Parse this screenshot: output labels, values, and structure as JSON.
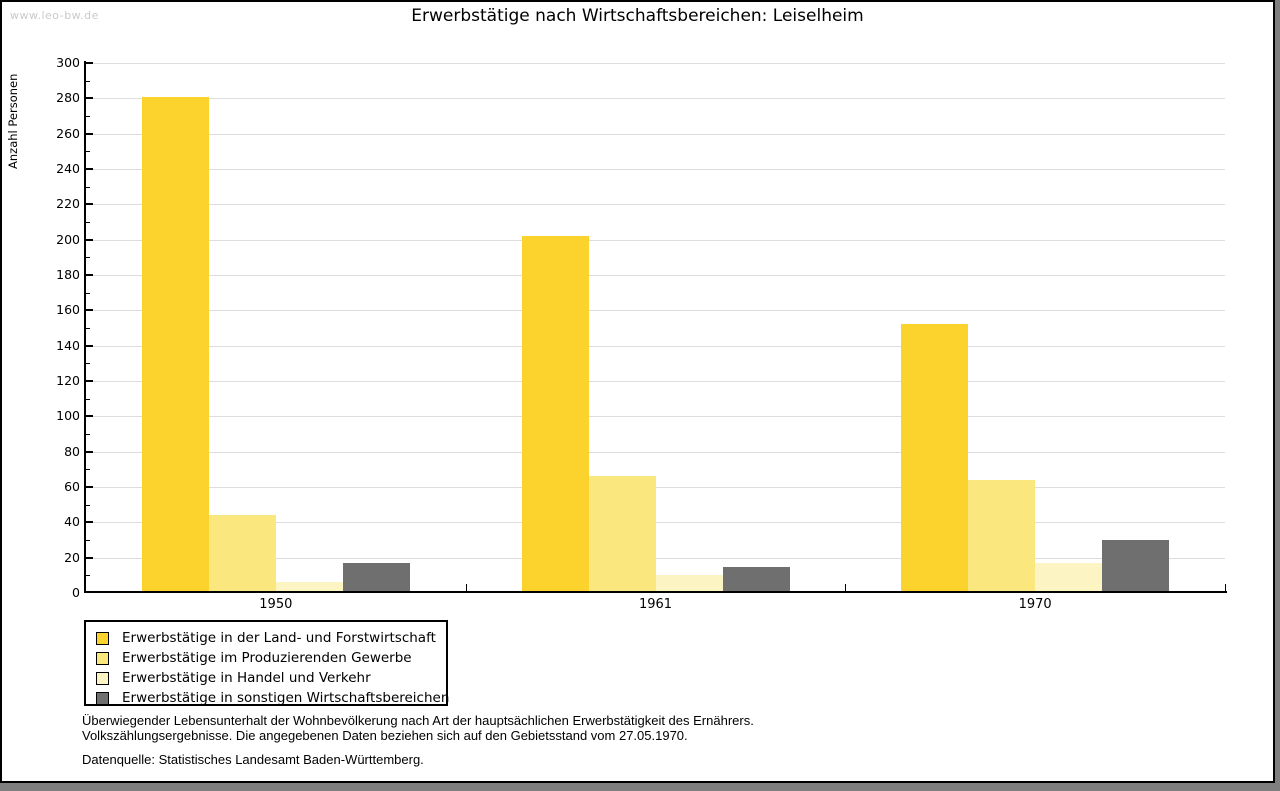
{
  "watermark": "www.leo-bw.de",
  "title": "Erwerbstätige nach Wirtschaftsbereichen: Leiselheim",
  "chart_data": {
    "type": "bar",
    "title": "Erwerbstätige nach Wirtschaftsbereichen: Leiselheim",
    "xlabel": "",
    "ylabel": "Anzahl Personen",
    "categories": [
      "1950",
      "1961",
      "1970"
    ],
    "series": [
      {
        "name": "Erwerbstätige in der Land- und Forstwirtschaft",
        "color": "#FCD32D",
        "values": [
          281,
          202,
          152
        ]
      },
      {
        "name": "Erwerbstätige im Produzierenden Gewerbe",
        "color": "#FAE87F",
        "values": [
          44,
          66,
          64
        ]
      },
      {
        "name": "Erwerbstätige in Handel und Verkehr",
        "color": "#FCF4C2",
        "values": [
          6,
          10,
          17
        ]
      },
      {
        "name": "Erwerbstätige in sonstigen Wirtschaftsbereichen",
        "color": "#6F6F6F",
        "values": [
          17,
          15,
          30
        ]
      }
    ],
    "ylim": [
      0,
      300
    ],
    "ytick_step": 20,
    "yminor_step": 10,
    "grid": true,
    "legend_position": "bottom-left",
    "gridline_color": "#DDDDDD",
    "axis_color": "#000000"
  },
  "footer": {
    "line1": "Überwiegender Lebensunterhalt der Wohnbevölkerung nach Art der hauptsächlichen Erwerbstätigkeit des Ernährers.",
    "line2": "Volkszählungsergebnisse. Die angegebenen Daten beziehen sich auf den Gebietsstand vom 27.05.1970.",
    "source": "Datenquelle: Statistisches Landesamt Baden-Württemberg."
  }
}
